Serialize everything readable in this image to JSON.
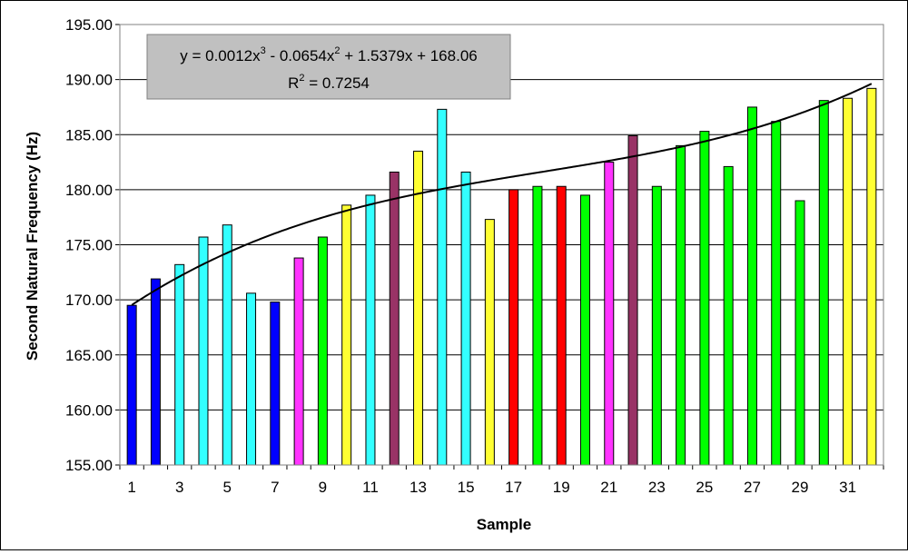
{
  "chart_data": {
    "type": "bar",
    "title": "",
    "xlabel": "Sample",
    "ylabel": "Second Natural Frequency (Hz)",
    "ylim": [
      155,
      195
    ],
    "y_ticks": [
      "155.00",
      "160.00",
      "165.00",
      "170.00",
      "175.00",
      "180.00",
      "185.00",
      "190.00",
      "195.00"
    ],
    "x_tick_labels": [
      "1",
      "3",
      "5",
      "7",
      "9",
      "11",
      "13",
      "15",
      "17",
      "19",
      "21",
      "23",
      "25",
      "27",
      "29",
      "31"
    ],
    "grid": true,
    "legend": "none",
    "samples": [
      1,
      2,
      3,
      4,
      5,
      6,
      7,
      8,
      9,
      10,
      11,
      12,
      13,
      14,
      15,
      16,
      17,
      18,
      19,
      20,
      21,
      22,
      23,
      24,
      25,
      26,
      27,
      28,
      29,
      30,
      31,
      32
    ],
    "values": [
      169.5,
      171.9,
      173.2,
      175.7,
      176.8,
      170.6,
      169.8,
      173.8,
      175.7,
      178.6,
      179.5,
      181.6,
      183.5,
      187.3,
      181.6,
      177.3,
      180.0,
      180.3,
      180.3,
      179.5,
      182.5,
      184.9,
      180.3,
      184.0,
      185.3,
      182.1,
      187.5,
      186.2,
      179.0,
      188.1,
      188.3,
      189.2
    ],
    "bar_colors": [
      "#0000ff",
      "#0000ff",
      "#33ffff",
      "#33ffff",
      "#33ffff",
      "#33ffff",
      "#0000ff",
      "#ff33ff",
      "#00ff00",
      "#ffff33",
      "#33ffff",
      "#993366",
      "#ffff33",
      "#33ffff",
      "#33ffff",
      "#ffff33",
      "#ff0000",
      "#00ff00",
      "#ff0000",
      "#00ff00",
      "#ff33ff",
      "#993366",
      "#00ff00",
      "#00ff00",
      "#00ff00",
      "#00ff00",
      "#00ff00",
      "#00ff00",
      "#00ff00",
      "#00ff00",
      "#ffff33",
      "#ffff33"
    ],
    "trendline": {
      "type": "polynomial-3",
      "coefficients": [
        0.0012,
        -0.0654,
        1.5379,
        168.06
      ],
      "r2": 0.7254
    },
    "annotation": {
      "equation_parts": [
        "y = 0.0012x",
        "3",
        " - 0.0654x",
        "2",
        " + 1.5379x + 168.06"
      ],
      "r2_parts": [
        "R",
        "2",
        " = 0.7254"
      ],
      "box_color": "#c0c0c0"
    }
  }
}
